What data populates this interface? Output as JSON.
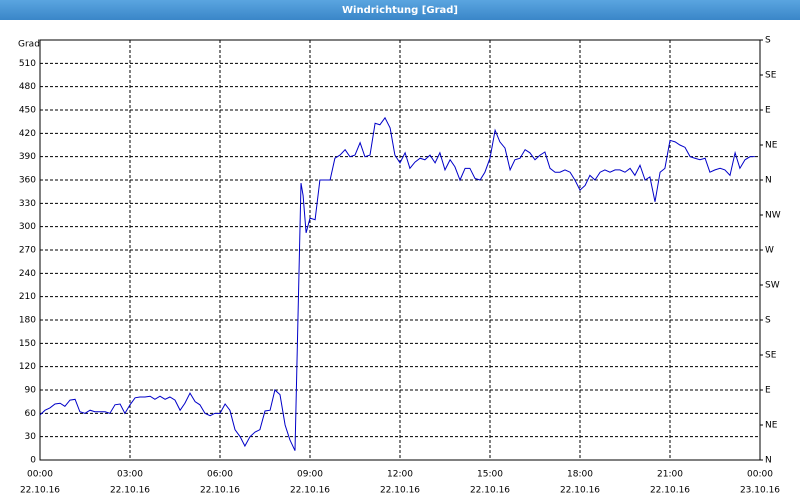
{
  "chart_data": {
    "type": "line",
    "title": "Windrichtung [Grad]",
    "y_label": "Grad",
    "x": [
      0,
      0.17,
      0.33,
      0.5,
      0.67,
      0.83,
      1,
      1.17,
      1.33,
      1.5,
      1.67,
      1.83,
      2,
      2.17,
      2.33,
      2.5,
      2.67,
      2.83,
      3,
      3.17,
      3.33,
      3.5,
      3.67,
      3.83,
      4,
      4.17,
      4.33,
      4.5,
      4.67,
      4.83,
      5,
      5.17,
      5.33,
      5.5,
      5.67,
      5.83,
      6,
      6.17,
      6.33,
      6.5,
      6.67,
      6.83,
      7,
      7.17,
      7.33,
      7.5,
      7.67,
      7.83,
      8,
      8.17,
      8.33,
      8.5,
      8.7,
      8.77,
      8.87,
      9,
      9.17,
      9.33,
      9.5,
      9.67,
      9.83,
      10,
      10.17,
      10.33,
      10.5,
      10.67,
      10.83,
      11,
      11.17,
      11.33,
      11.5,
      11.67,
      11.83,
      12,
      12.17,
      12.33,
      12.5,
      12.67,
      12.83,
      13,
      13.17,
      13.33,
      13.5,
      13.67,
      13.83,
      14,
      14.17,
      14.33,
      14.5,
      14.67,
      14.83,
      15,
      15.17,
      15.33,
      15.5,
      15.67,
      15.83,
      16,
      16.17,
      16.33,
      16.5,
      16.67,
      16.83,
      17,
      17.17,
      17.33,
      17.5,
      17.67,
      17.83,
      18,
      18.17,
      18.33,
      18.5,
      18.67,
      18.83,
      19,
      19.17,
      19.33,
      19.5,
      19.67,
      19.83,
      20,
      20.17,
      20.33,
      20.5,
      20.67,
      20.83,
      21,
      21.17,
      21.33,
      21.5,
      21.67,
      21.83,
      22,
      22.17,
      22.33,
      22.5,
      22.67,
      22.83,
      23,
      23.17,
      23.33,
      23.5,
      23.67,
      23.83
    ],
    "series": [
      {
        "name": "Windrichtung",
        "color": "#0000c8",
        "values": [
          58,
          64,
          67,
          72,
          73,
          69,
          77,
          78,
          62,
          60,
          64,
          62,
          62,
          62,
          60,
          71,
          72,
          60,
          71,
          80,
          81,
          81,
          82,
          78,
          82,
          78,
          81,
          77,
          64,
          73,
          86,
          75,
          71,
          60,
          57,
          60,
          60,
          72,
          64,
          39,
          30,
          18,
          30,
          36,
          39,
          63,
          64,
          90,
          84,
          45,
          26,
          12,
          356,
          340,
          292,
          311,
          309,
          360,
          360,
          360,
          388,
          392,
          399,
          390,
          392,
          408,
          390,
          392,
          433,
          431,
          440,
          427,
          392,
          382,
          395,
          375,
          383,
          388,
          386,
          392,
          382,
          395,
          373,
          386,
          377,
          360,
          375,
          375,
          362,
          360,
          370,
          388,
          424,
          409,
          401,
          373,
          386,
          388,
          399,
          395,
          386,
          392,
          396,
          375,
          370,
          370,
          373,
          370,
          360,
          347,
          353,
          366,
          360,
          370,
          373,
          370,
          373,
          373,
          370,
          375,
          366,
          379,
          360,
          364,
          332,
          370,
          375,
          411,
          409,
          405,
          402,
          390,
          388,
          386,
          388,
          370,
          373,
          375,
          373,
          366,
          395,
          375,
          386,
          390,
          390
        ]
      }
    ],
    "xlim": [
      0,
      24
    ],
    "xticks": [
      {
        "value": 0,
        "label": "00:00"
      },
      {
        "value": 3,
        "label": "03:00"
      },
      {
        "value": 6,
        "label": "06:00"
      },
      {
        "value": 9,
        "label": "09:00"
      },
      {
        "value": 12,
        "label": "12:00"
      },
      {
        "value": 15,
        "label": "15:00"
      },
      {
        "value": 18,
        "label": "18:00"
      },
      {
        "value": 21,
        "label": "21:00"
      },
      {
        "value": 24,
        "label": "00:00"
      }
    ],
    "xtick_dates": [
      "22.10.16",
      "22.10.16",
      "22.10.16",
      "22.10.16",
      "22.10.16",
      "22.10.16",
      "22.10.16",
      "22.10.16",
      "23.10.16"
    ],
    "ylim": [
      0,
      540
    ],
    "yticks": [
      0,
      30,
      60,
      90,
      120,
      150,
      180,
      210,
      240,
      270,
      300,
      330,
      360,
      390,
      420,
      450,
      480,
      510
    ],
    "y2lim": [
      0,
      540
    ],
    "y2ticks": [
      {
        "value": 0,
        "label": "N"
      },
      {
        "value": 45,
        "label": "NE"
      },
      {
        "value": 90,
        "label": "E"
      },
      {
        "value": 135,
        "label": "SE"
      },
      {
        "value": 180,
        "label": "S"
      },
      {
        "value": 225,
        "label": "SW"
      },
      {
        "value": 270,
        "label": "W"
      },
      {
        "value": 315,
        "label": "NW"
      },
      {
        "value": 360,
        "label": "N"
      },
      {
        "value": 405,
        "label": "NE"
      },
      {
        "value": 450,
        "label": "E"
      },
      {
        "value": 495,
        "label": "SE"
      },
      {
        "value": 540,
        "label": "S"
      }
    ],
    "grid": true
  }
}
